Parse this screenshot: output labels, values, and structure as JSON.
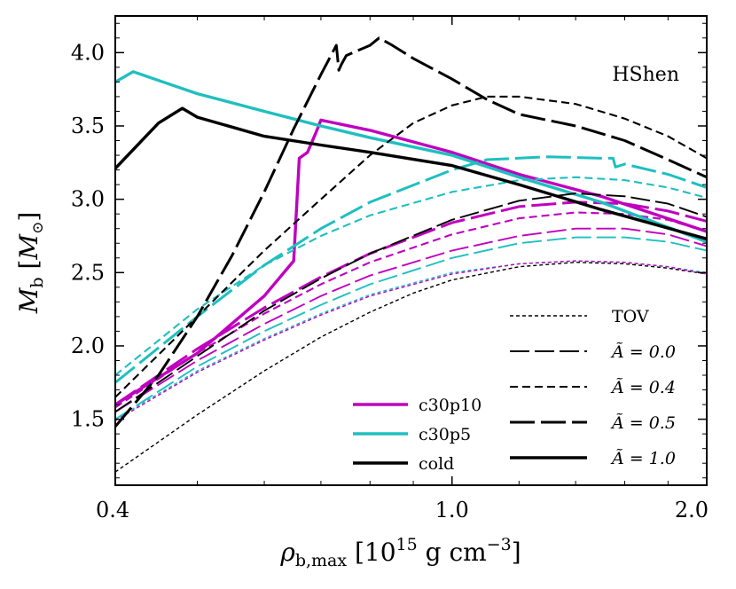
{
  "chart_data": {
    "type": "line",
    "annotation": "HShen",
    "xlabel": "ρb,max [10^15 g cm^-3]",
    "xlabel_parts": {
      "sym": "ρ",
      "sub": "b,max",
      "bracket_open": " [10",
      "sup1": "15",
      "unit": " g cm",
      "sup2": "−3",
      "bracket_close": "]"
    },
    "ylabel_parts": {
      "sym": "M",
      "sub": "b",
      "bracket_open": " [",
      "msym": "M",
      "msub": "⊙",
      "bracket_close": "]"
    },
    "xscale": "log",
    "xlim": [
      0.4,
      2.0
    ],
    "ylim": [
      1.05,
      4.25
    ],
    "xticks": [
      {
        "value": 0.4,
        "label": "0.4"
      },
      {
        "value": 1.0,
        "label": "1.0"
      },
      {
        "value": 2.0,
        "label": "2.0"
      }
    ],
    "yticks": [
      {
        "value": 1.5,
        "label": "1.5"
      },
      {
        "value": 2.0,
        "label": "2.0"
      },
      {
        "value": 2.5,
        "label": "2.5"
      },
      {
        "value": 3.0,
        "label": "3.0"
      },
      {
        "value": 3.5,
        "label": "3.5"
      },
      {
        "value": 4.0,
        "label": "4.0"
      }
    ],
    "colors": {
      "c30p10": "#bf00bf",
      "c30p5": "#1fbfbf",
      "cold": "#000000"
    },
    "legend_models": [
      {
        "name": "c30p10",
        "color": "#bf00bf"
      },
      {
        "name": "c30p5",
        "color": "#1fbfbf"
      },
      {
        "name": "cold",
        "color": "#000000"
      }
    ],
    "legend_styles": [
      {
        "label": "TOV",
        "style": "tov"
      },
      {
        "label": "Ã = 0.0",
        "style": "a00"
      },
      {
        "label": "Ã = 0.4",
        "style": "a04"
      },
      {
        "label": "Ã = 0.5",
        "style": "a05"
      },
      {
        "label": "Ã = 1.0",
        "style": "a10"
      }
    ],
    "series": [
      {
        "name": "cold TOV",
        "model": "cold",
        "style": "tov",
        "x": [
          0.4,
          0.5,
          0.6,
          0.7,
          0.8,
          0.9,
          1.0,
          1.2,
          1.4,
          1.6,
          1.8,
          2.0
        ],
        "y": [
          1.14,
          1.53,
          1.83,
          2.06,
          2.23,
          2.36,
          2.45,
          2.54,
          2.57,
          2.56,
          2.53,
          2.49
        ]
      },
      {
        "name": "c30p5 TOV",
        "model": "c30p5",
        "style": "tov",
        "x": [
          0.4,
          0.5,
          0.6,
          0.7,
          0.8,
          1.0,
          1.2,
          1.4,
          1.6,
          1.8,
          2.0
        ],
        "y": [
          1.5,
          1.83,
          2.05,
          2.22,
          2.35,
          2.5,
          2.56,
          2.58,
          2.57,
          2.54,
          2.5
        ]
      },
      {
        "name": "c30p10 TOV",
        "model": "c30p10",
        "style": "tov",
        "x": [
          0.4,
          0.5,
          0.6,
          0.7,
          0.8,
          1.0,
          1.2,
          1.4,
          1.6,
          1.8,
          2.0
        ],
        "y": [
          1.49,
          1.82,
          2.04,
          2.21,
          2.34,
          2.49,
          2.56,
          2.58,
          2.57,
          2.54,
          2.49
        ]
      },
      {
        "name": "c30p10 A=0.0",
        "model": "c30p10",
        "style": "a00",
        "x": [
          0.4,
          0.5,
          0.6,
          0.7,
          0.8,
          1.0,
          1.2,
          1.4,
          1.6,
          1.8,
          2.0
        ],
        "y": [
          1.55,
          1.9,
          2.15,
          2.34,
          2.48,
          2.65,
          2.75,
          2.8,
          2.8,
          2.76,
          2.68
        ]
      },
      {
        "name": "c30p10 A=0.4",
        "model": "c30p10",
        "style": "a04",
        "x": [
          0.4,
          0.5,
          0.6,
          0.7,
          0.8,
          1.0,
          1.2,
          1.4,
          1.6,
          1.8,
          2.0
        ],
        "y": [
          1.58,
          1.95,
          2.22,
          2.42,
          2.57,
          2.76,
          2.87,
          2.91,
          2.9,
          2.86,
          2.78
        ]
      },
      {
        "name": "c30p10 A=0.5",
        "model": "c30p10",
        "style": "a05",
        "x": [
          0.4,
          0.5,
          0.6,
          0.7,
          0.8,
          1.0,
          1.2,
          1.4,
          1.6,
          1.8,
          2.0
        ],
        "y": [
          1.6,
          1.98,
          2.26,
          2.47,
          2.63,
          2.84,
          2.95,
          2.98,
          2.97,
          2.92,
          2.85
        ]
      },
      {
        "name": "c30p10 A=1.0",
        "model": "c30p10",
        "style": "a10",
        "x": [
          0.4,
          0.5,
          0.6,
          0.65,
          0.66,
          0.675,
          0.69,
          0.7,
          0.8,
          1.0,
          1.2,
          1.5,
          2.0
        ],
        "y": [
          1.6,
          1.95,
          2.34,
          2.58,
          3.28,
          3.32,
          3.45,
          3.54,
          3.47,
          3.32,
          3.17,
          3.02,
          2.78
        ]
      },
      {
        "name": "c30p5 A=0.0",
        "model": "c30p5",
        "style": "a00",
        "x": [
          0.4,
          0.5,
          0.6,
          0.7,
          0.8,
          1.0,
          1.2,
          1.4,
          1.6,
          1.8,
          2.0
        ],
        "y": [
          1.5,
          1.86,
          2.1,
          2.28,
          2.42,
          2.6,
          2.7,
          2.74,
          2.74,
          2.71,
          2.65
        ]
      },
      {
        "name": "c30p5 A=0.4",
        "model": "c30p5",
        "style": "a04",
        "x": [
          0.4,
          0.5,
          0.6,
          0.7,
          0.8,
          1.0,
          1.2,
          1.4,
          1.6,
          1.8,
          2.0
        ],
        "y": [
          1.8,
          2.25,
          2.55,
          2.75,
          2.89,
          3.05,
          3.13,
          3.15,
          3.13,
          3.08,
          3.01
        ]
      },
      {
        "name": "c30p5 A=0.5",
        "model": "c30p5",
        "style": "a05",
        "x": [
          0.4,
          0.5,
          0.6,
          0.7,
          0.8,
          1.0,
          1.1,
          1.3,
          1.5,
          1.55,
          1.56,
          1.6,
          1.8,
          2.0
        ],
        "y": [
          1.75,
          2.2,
          2.55,
          2.8,
          2.98,
          3.2,
          3.27,
          3.29,
          3.28,
          3.28,
          3.22,
          3.24,
          3.17,
          3.08
        ]
      },
      {
        "name": "c30p5 A=1.0",
        "model": "c30p5",
        "style": "a10",
        "x": [
          0.4,
          0.42,
          0.45,
          0.5,
          0.6,
          0.7,
          0.8,
          1.0,
          1.2,
          1.5,
          2.0
        ],
        "y": [
          3.8,
          3.87,
          3.81,
          3.72,
          3.6,
          3.5,
          3.42,
          3.3,
          3.15,
          2.98,
          2.71
        ]
      },
      {
        "name": "cold A=0.0",
        "model": "cold",
        "style": "a00",
        "x": [
          0.4,
          0.5,
          0.6,
          0.7,
          0.8,
          1.0,
          1.2,
          1.4,
          1.6,
          1.8,
          2.0
        ],
        "y": [
          1.55,
          1.93,
          2.24,
          2.46,
          2.63,
          2.86,
          2.99,
          3.04,
          3.02,
          2.97,
          2.88
        ]
      },
      {
        "name": "cold A=0.4",
        "model": "cold",
        "style": "a04",
        "x": [
          0.4,
          0.5,
          0.6,
          0.7,
          0.8,
          0.9,
          1.0,
          1.1,
          1.2,
          1.4,
          1.6,
          1.8,
          2.0
        ],
        "y": [
          1.65,
          2.2,
          2.65,
          3.0,
          3.3,
          3.52,
          3.64,
          3.7,
          3.7,
          3.65,
          3.55,
          3.43,
          3.28
        ]
      },
      {
        "name": "cold A=0.5",
        "model": "cold",
        "style": "a05",
        "x": [
          0.4,
          0.45,
          0.5,
          0.55,
          0.6,
          0.65,
          0.7,
          0.73,
          0.735,
          0.74,
          0.75,
          0.8,
          0.82,
          0.85,
          0.9,
          1.0,
          1.1,
          1.2,
          1.4,
          1.6,
          1.8,
          2.0
        ],
        "y": [
          1.45,
          1.8,
          2.2,
          2.62,
          3.05,
          3.48,
          3.85,
          4.05,
          3.88,
          3.92,
          3.98,
          4.05,
          4.1,
          4.05,
          3.96,
          3.82,
          3.68,
          3.58,
          3.5,
          3.4,
          3.27,
          3.15
        ]
      },
      {
        "name": "cold A=1.0",
        "model": "cold",
        "style": "a10",
        "x": [
          0.4,
          0.45,
          0.48,
          0.5,
          0.6,
          0.7,
          0.8,
          1.0,
          1.2,
          1.5,
          2.0
        ],
        "y": [
          3.21,
          3.52,
          3.62,
          3.56,
          3.43,
          3.37,
          3.32,
          3.23,
          3.1,
          2.93,
          2.73
        ]
      }
    ]
  }
}
